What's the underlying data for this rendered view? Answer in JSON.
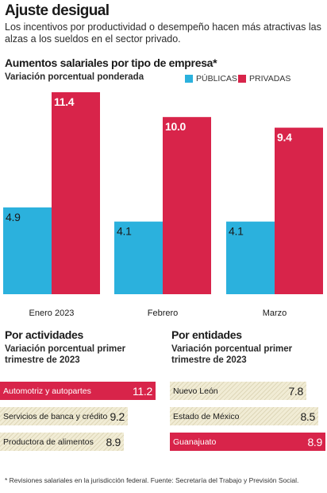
{
  "header": {
    "title": "Ajuste desigual",
    "subtitle": "Los incentivos por productividad o desempeño hacen más atractivas las alzas a los sueldos en el sector privado."
  },
  "colors": {
    "publicas": "#2bb1dd",
    "privadas": "#d8244a",
    "neutral": "#f1ecd5"
  },
  "main_section": {
    "title": "Aumentos salariales por tipo de empresa*",
    "subtitle": "Variación porcentual ponderada",
    "legend": {
      "publicas": "PÚBLICAS",
      "privadas": "PRIVADAS"
    }
  },
  "actividades": {
    "title": "Por actividades",
    "subtitle": "Variación porcentual primer trimestre de 2023"
  },
  "entidades": {
    "title": "Por entidades",
    "subtitle": "Variación porcentual primer trimestre de 2023"
  },
  "footnote": "* Revisiones salariales en la jurisdicción federal. Fuente: Secretaría del Trabajo y Previsión Social.",
  "chart_data": [
    {
      "type": "bar",
      "title": "Aumentos salariales por tipo de empresa*",
      "subtitle": "Variación porcentual ponderada",
      "categories": [
        "Enero 2023",
        "Febrero",
        "Marzo"
      ],
      "series": [
        {
          "name": "PÚBLICAS",
          "values": [
            4.9,
            4.1,
            4.1
          ],
          "labels": [
            "4.9",
            "4.1",
            "4.1"
          ],
          "color": "#2bb1dd"
        },
        {
          "name": "PRIVADAS",
          "values": [
            11.4,
            10.0,
            9.4
          ],
          "labels": [
            "11.4",
            "10.0",
            "9.4"
          ],
          "color": "#d8244a"
        }
      ],
      "ylim": [
        0,
        11.4
      ],
      "legend": "top-right",
      "grid": false
    },
    {
      "type": "bar",
      "orientation": "horizontal",
      "title": "Por actividades",
      "categories": [
        "Automotriz y autopartes",
        "Servicios de banca y crédito",
        "Productora de alimentos"
      ],
      "values": [
        11.2,
        9.2,
        8.9
      ],
      "labels": [
        "11.2",
        "9.2",
        "8.9"
      ],
      "highlight": [
        true,
        false,
        false
      ]
    },
    {
      "type": "bar",
      "orientation": "horizontal",
      "title": "Por entidades",
      "categories": [
        "Nuevo León",
        "Estado de México",
        "Guanajuato"
      ],
      "values": [
        7.8,
        8.5,
        8.9
      ],
      "labels": [
        "7.8",
        "8.5",
        "8.9"
      ],
      "highlight": [
        false,
        false,
        true
      ]
    }
  ]
}
